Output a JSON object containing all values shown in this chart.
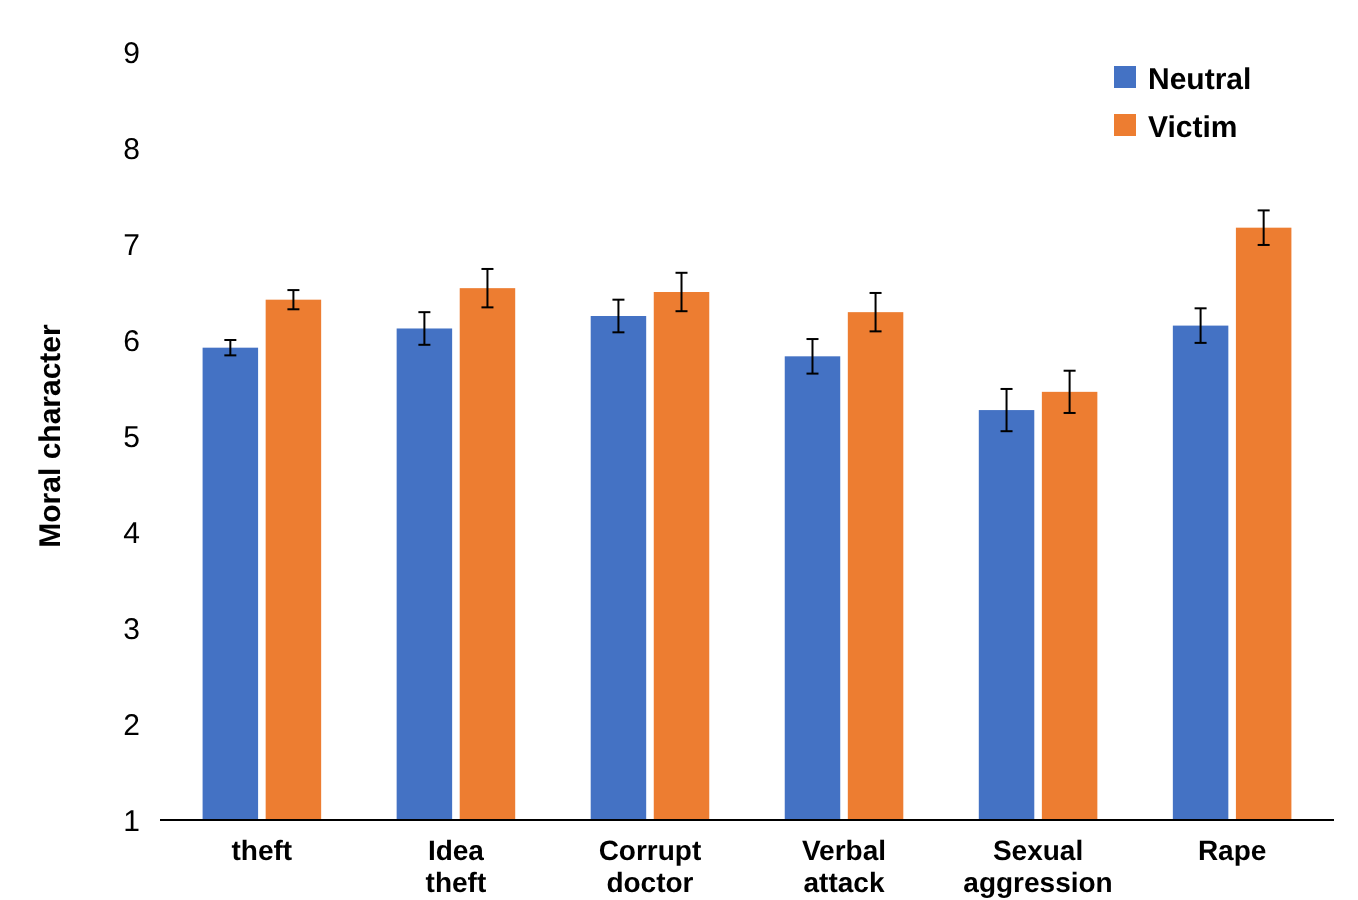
{
  "chart_data": {
    "type": "bar",
    "ylabel": "Moral character",
    "categories": [
      "theft",
      "Idea theft",
      "Corrupt doctor",
      "Verbal attack",
      "Sexual aggression",
      "Rape"
    ],
    "series": [
      {
        "name": "Neutral",
        "color": "#4472c4",
        "values": [
          5.92,
          6.12,
          6.25,
          5.83,
          5.27,
          6.15
        ],
        "errors": [
          0.08,
          0.17,
          0.17,
          0.18,
          0.22,
          0.18
        ]
      },
      {
        "name": "Victim",
        "color": "#ed7d31",
        "values": [
          6.42,
          6.54,
          6.5,
          6.29,
          5.46,
          7.17
        ],
        "errors": [
          0.1,
          0.2,
          0.2,
          0.2,
          0.22,
          0.18
        ]
      }
    ],
    "ylim": [
      1,
      9
    ],
    "yticks": [
      1,
      2,
      3,
      4,
      5,
      6,
      7,
      8,
      9
    ],
    "legend": "top right",
    "grid": false
  }
}
